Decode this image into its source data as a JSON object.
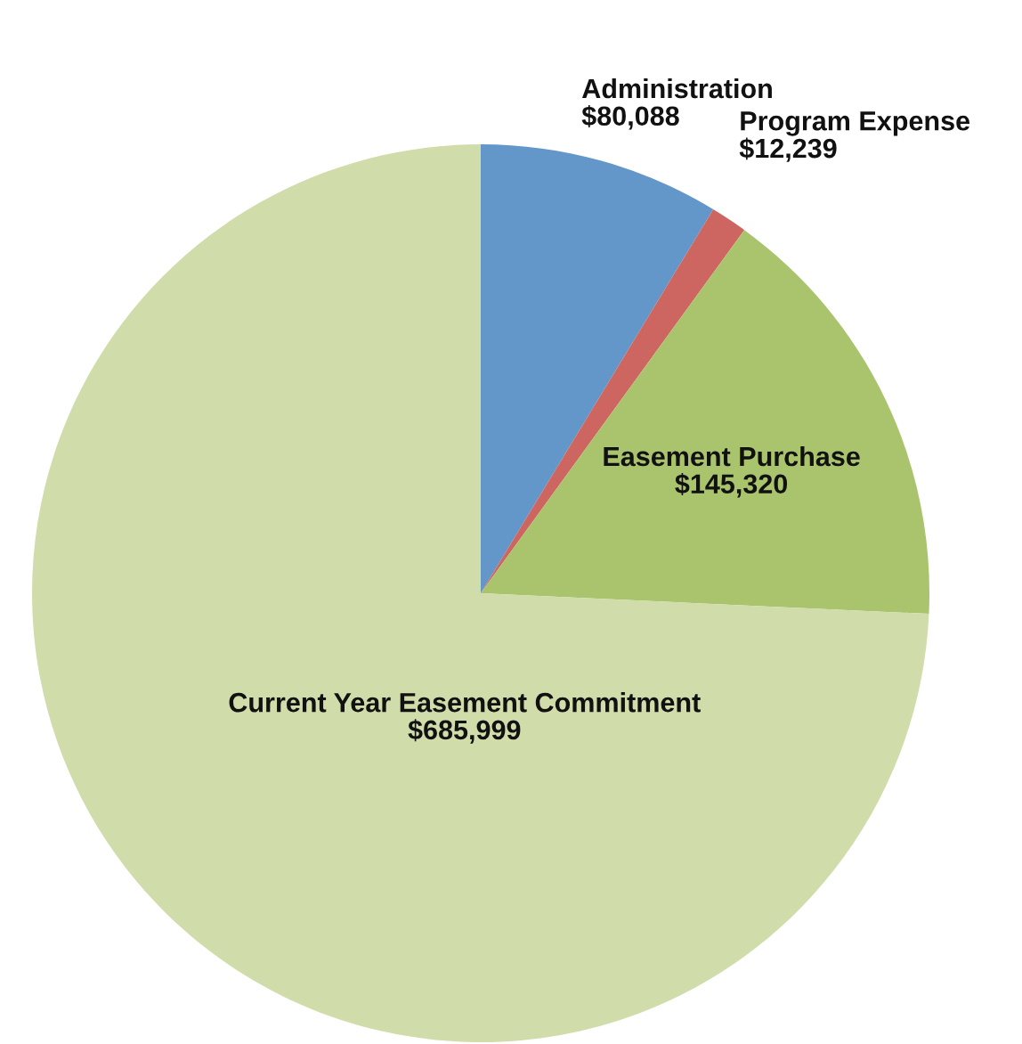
{
  "chart_data": {
    "type": "pie",
    "categories": [
      "Administration",
      "Program Expense",
      "Easement Purchase",
      "Current Year Easement Commitment"
    ],
    "values": [
      80088,
      12239,
      145320,
      685999
    ],
    "value_labels": [
      "$80,088",
      "$12,239",
      "$145,320",
      "$685,999"
    ],
    "colors": [
      "#6497c9",
      "#cd6660",
      "#a9c46c",
      "#d0dca9"
    ]
  }
}
